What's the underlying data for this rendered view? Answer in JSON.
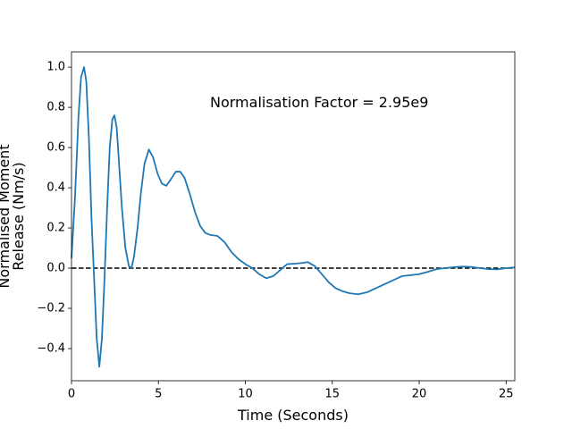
{
  "chart_data": {
    "type": "line",
    "xlabel": "Time (Seconds)",
    "ylabel": [
      "Normalised Moment",
      "Release (Nm/s)"
    ],
    "annotation": "Normalisation Factor = 2.95e9",
    "xlim": [
      0,
      25.5
    ],
    "ylim": [
      -0.56,
      1.076
    ],
    "xticks": [
      0,
      5,
      10,
      15,
      20,
      25
    ],
    "yticks": [
      {
        "value": -0.4,
        "label": "−0.4"
      },
      {
        "value": -0.2,
        "label": "−0.2"
      },
      {
        "value": 0,
        "label": "0.0"
      },
      0.2,
      0.4,
      0.6,
      0.8,
      {
        "value": 1,
        "label": "1.0"
      }
    ],
    "hline": 0,
    "hline_color": "#000000",
    "x": [
      0,
      0.2,
      0.4,
      0.55,
      0.72,
      0.85,
      1.0,
      1.15,
      1.3,
      1.45,
      1.6,
      1.75,
      1.9,
      2.05,
      2.2,
      2.35,
      2.47,
      2.6,
      2.75,
      2.9,
      3.1,
      3.3,
      3.45,
      3.6,
      3.8,
      4.0,
      4.2,
      4.45,
      4.7,
      4.95,
      5.2,
      5.45,
      5.7,
      6.0,
      6.25,
      6.5,
      6.8,
      7.1,
      7.4,
      7.7,
      8.0,
      8.4,
      8.8,
      9.2,
      9.6,
      10.0,
      10.4,
      10.8,
      11.2,
      11.6,
      12.0,
      12.4,
      12.8,
      13.2,
      13.6,
      14.0,
      14.4,
      14.8,
      15.2,
      15.6,
      16.0,
      16.5,
      17.0,
      17.5,
      18.0,
      18.5,
      19.0,
      19.5,
      20.0,
      20.5,
      21.0,
      21.5,
      22.0,
      22.5,
      23.0,
      23.5,
      24.0,
      24.5,
      25.0,
      25.5
    ],
    "series": [
      {
        "name": "moment",
        "color": "#1f77b4",
        "values": [
          0.05,
          0.35,
          0.75,
          0.95,
          1.0,
          0.93,
          0.65,
          0.25,
          -0.05,
          -0.35,
          -0.49,
          -0.35,
          -0.05,
          0.3,
          0.6,
          0.74,
          0.76,
          0.7,
          0.5,
          0.3,
          0.1,
          0.01,
          0.0,
          0.06,
          0.2,
          0.38,
          0.52,
          0.59,
          0.55,
          0.47,
          0.42,
          0.41,
          0.44,
          0.48,
          0.48,
          0.45,
          0.37,
          0.28,
          0.21,
          0.175,
          0.165,
          0.16,
          0.13,
          0.08,
          0.045,
          0.02,
          0.0,
          -0.03,
          -0.05,
          -0.04,
          -0.01,
          0.02,
          0.022,
          0.025,
          0.03,
          0.01,
          -0.03,
          -0.07,
          -0.1,
          -0.115,
          -0.125,
          -0.13,
          -0.12,
          -0.1,
          -0.08,
          -0.06,
          -0.04,
          -0.035,
          -0.03,
          -0.018,
          -0.005,
          0.0,
          0.005,
          0.008,
          0.006,
          0.0,
          -0.005,
          -0.006,
          0.0,
          0.004
        ]
      }
    ]
  }
}
